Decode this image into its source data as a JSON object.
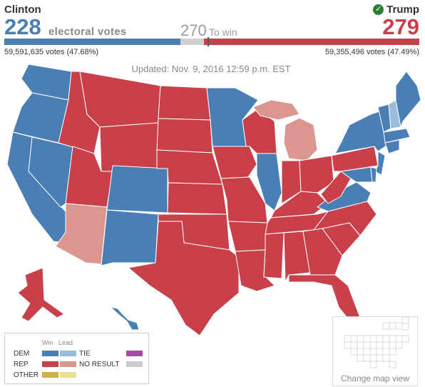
{
  "clinton": {
    "name": "Clinton",
    "electoral_votes": "228",
    "popular": "59,591,635 votes (47.68%)",
    "color": "#4a7fb5"
  },
  "trump": {
    "name": "Trump",
    "electoral_votes": "279",
    "popular": "59,355,496 votes (47.49%)",
    "color": "#c9404a"
  },
  "electoral_label": "electoral votes",
  "to_win": {
    "number": "270",
    "label": "To win"
  },
  "bar": {
    "dem": 228,
    "rep": 279,
    "total": 538
  },
  "updated": "Updated: Nov. 9, 2016 12:59 p.m. EST",
  "colors": {
    "dem_win": "#4a7fb5",
    "dem_lead": "#9dbcdc",
    "rep_win": "#c9404a",
    "rep_lead": "#da968f",
    "tie": "#a64ca6",
    "no_result": "#cccccc",
    "other_win": "#cdb33e",
    "other_lead": "#eedd99"
  },
  "legend": {
    "win": "Win",
    "lead": "Lead",
    "dem": "DEM",
    "rep": "REP",
    "other": "OTHER",
    "tie": "TIE",
    "no_result": "NO RESULT"
  },
  "mini_map": {
    "label": "Change map view"
  }
}
